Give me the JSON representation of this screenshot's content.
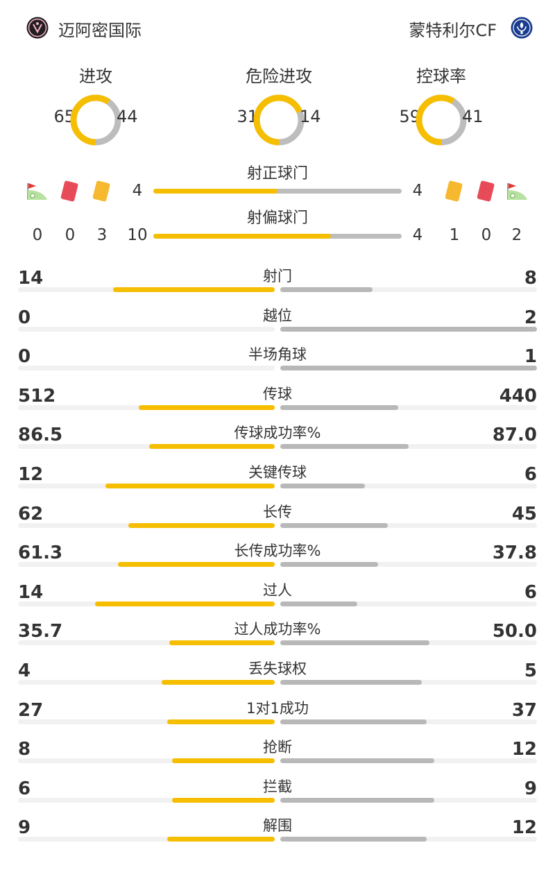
{
  "colors": {
    "home": "#f6be00",
    "away": "#bdbdbd",
    "track": "#f1f1f1"
  },
  "home_team": {
    "name": "迈阿密国际",
    "logo_icon": "inter-miami-crest-icon"
  },
  "away_team": {
    "name": "蒙特利尔CF",
    "logo_icon": "cf-montreal-crest-icon"
  },
  "donuts": [
    {
      "title": "进攻",
      "home": 65,
      "away": 44
    },
    {
      "title": "危险进攻",
      "home": 31,
      "away": 14
    },
    {
      "title": "控球率",
      "home": 59,
      "away": 41
    }
  ],
  "shots": {
    "on_target": {
      "label": "射正球门",
      "home": 4,
      "away": 4
    },
    "off_target": {
      "label": "射偏球门",
      "home": 10,
      "away": 4
    }
  },
  "discipline": {
    "home": {
      "corners": 0,
      "red_cards": 0,
      "yellow_cards": 3
    },
    "away": {
      "yellow_cards": 1,
      "red_cards": 0,
      "corners": 2
    }
  },
  "stats": [
    {
      "label": "射门",
      "home": "14",
      "away": "8",
      "home_frac": 0.63,
      "away_frac": 0.36
    },
    {
      "label": "越位",
      "home": "0",
      "away": "2",
      "home_frac": 0.0,
      "away_frac": 1.0
    },
    {
      "label": "半场角球",
      "home": "0",
      "away": "1",
      "home_frac": 0.0,
      "away_frac": 1.0
    },
    {
      "label": "传球",
      "home": "512",
      "away": "440",
      "home_frac": 0.53,
      "away_frac": 0.46
    },
    {
      "label": "传球成功率%",
      "home": "86.5",
      "away": "87.0",
      "home_frac": 0.49,
      "away_frac": 0.5
    },
    {
      "label": "关键传球",
      "home": "12",
      "away": "6",
      "home_frac": 0.66,
      "away_frac": 0.33
    },
    {
      "label": "长传",
      "home": "62",
      "away": "45",
      "home_frac": 0.57,
      "away_frac": 0.42
    },
    {
      "label": "长传成功率%",
      "home": "61.3",
      "away": "37.8",
      "home_frac": 0.61,
      "away_frac": 0.38
    },
    {
      "label": "过人",
      "home": "14",
      "away": "6",
      "home_frac": 0.7,
      "away_frac": 0.3
    },
    {
      "label": "过人成功率%",
      "home": "35.7",
      "away": "50.0",
      "home_frac": 0.41,
      "away_frac": 0.58
    },
    {
      "label": "丢失球权",
      "home": "4",
      "away": "5",
      "home_frac": 0.44,
      "away_frac": 0.55
    },
    {
      "label": "1对1成功",
      "home": "27",
      "away": "37",
      "home_frac": 0.42,
      "away_frac": 0.57
    },
    {
      "label": "抢断",
      "home": "8",
      "away": "12",
      "home_frac": 0.4,
      "away_frac": 0.6
    },
    {
      "label": "拦截",
      "home": "6",
      "away": "9",
      "home_frac": 0.4,
      "away_frac": 0.6
    },
    {
      "label": "解围",
      "home": "9",
      "away": "12",
      "home_frac": 0.42,
      "away_frac": 0.57
    }
  ]
}
